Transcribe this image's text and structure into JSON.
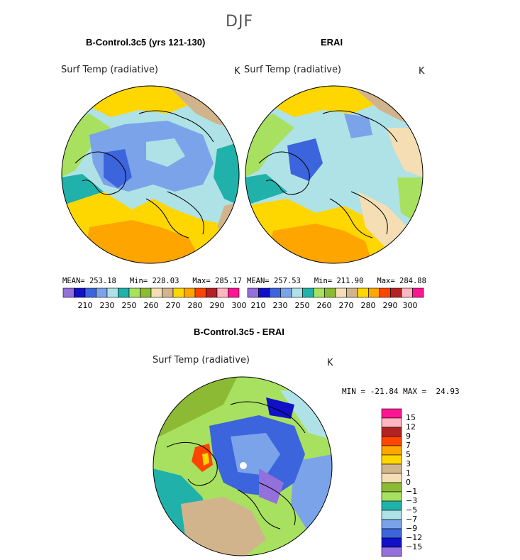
{
  "figure": {
    "season": "DJF"
  },
  "panels": [
    {
      "title": "B-Control.3c5 (yrs 121-130)",
      "variable": "Surf Temp (radiative)",
      "units": "K",
      "stats": {
        "mean_label": "MEAN=",
        "mean": "253.18",
        "min_label": "Min=",
        "min": "228.03",
        "max_label": "Max=",
        "max": "285.17"
      }
    },
    {
      "title": "ERAI",
      "variable": "Surf Temp (radiative)",
      "units": "K",
      "stats": {
        "mean_label": "MEAN=",
        "mean": "257.53",
        "min_label": "Min=",
        "min": "211.90",
        "max_label": "Max=",
        "max": "284.88"
      }
    }
  ],
  "abs_colorbar": {
    "colors": [
      "#9370db",
      "#1010c8",
      "#3c64dc",
      "#7ba3ea",
      "#aee2e6",
      "#20b2aa",
      "#a8e060",
      "#8cba34",
      "#f5deb3",
      "#d2b48c",
      "#ffd700",
      "#ffa500",
      "#ff4500",
      "#b22222",
      "#ffb6c1",
      "#ff1493"
    ],
    "tick_labels": [
      "210",
      "230",
      "250",
      "260",
      "270",
      "280",
      "290",
      "300"
    ]
  },
  "diff_panel": {
    "title": "B-Control.3c5 - ERAI",
    "variable": "Surf Temp (radiative)",
    "units": "K",
    "range_text": {
      "min_label": "MIN =",
      "min": "-21.84",
      "max_label": "MAX =",
      "max": "24.93"
    }
  },
  "diff_colorbar": {
    "colors_top_to_bottom": [
      "#ff1493",
      "#ffb6c1",
      "#b22222",
      "#ff4500",
      "#ffa500",
      "#ffd700",
      "#d2b48c",
      "#f5deb3",
      "#8cba34",
      "#a8e060",
      "#20b2aa",
      "#aee2e6",
      "#7ba3ea",
      "#3c64dc",
      "#1010c8",
      "#9370db"
    ],
    "tick_labels_top_to_bottom": [
      "15",
      "12",
      "9",
      "7",
      "5",
      "3",
      "1",
      "0",
      "−1",
      "−3",
      "−5",
      "−7",
      "−9",
      "−12",
      "−15"
    ]
  }
}
